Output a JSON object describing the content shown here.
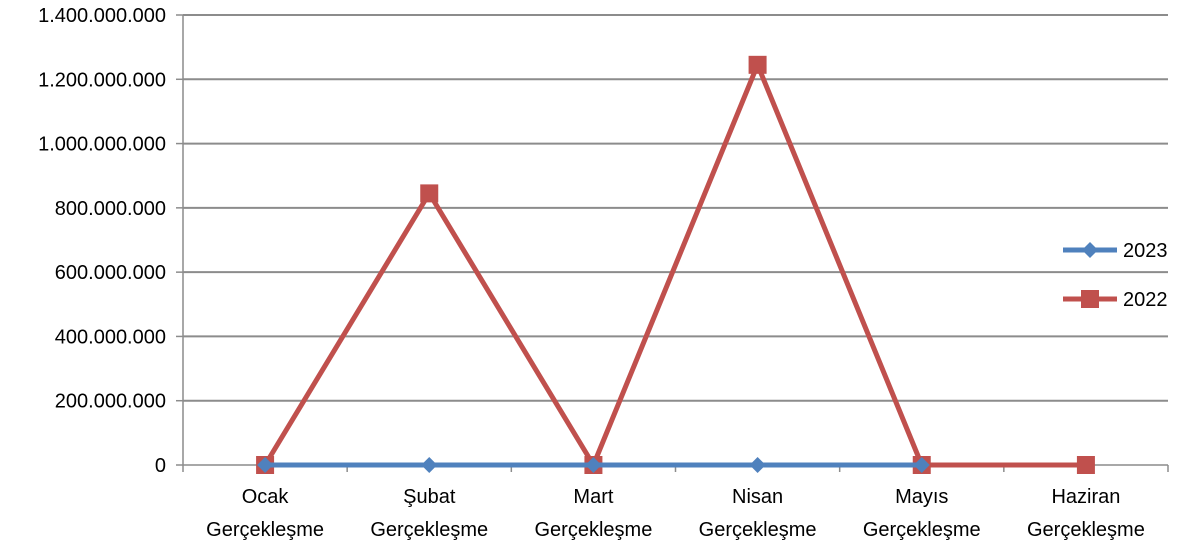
{
  "chart_data": {
    "type": "line",
    "categories": [
      [
        "Ocak",
        "Gerçekleşme"
      ],
      [
        "Şubat",
        "Gerçekleşme"
      ],
      [
        "Mart",
        "Gerçekleşme"
      ],
      [
        "Nisan",
        "Gerçekleşme"
      ],
      [
        "Mayıs",
        "Gerçekleşme"
      ],
      [
        "Haziran",
        "Gerçekleşme"
      ]
    ],
    "y_ticks": [
      {
        "value": 0,
        "label": "0"
      },
      {
        "value": 200000000,
        "label": "200.000.000"
      },
      {
        "value": 400000000,
        "label": "400.000.000"
      },
      {
        "value": 600000000,
        "label": "600.000.000"
      },
      {
        "value": 800000000,
        "label": "800.000.000"
      },
      {
        "value": 1000000000,
        "label": "1.000.000.000"
      },
      {
        "value": 1200000000,
        "label": "1.200.000.000"
      },
      {
        "value": 1400000000,
        "label": "1.400.000.000"
      }
    ],
    "ylim": [
      0,
      1400000000
    ],
    "grid": true,
    "legend_position": "right",
    "series": [
      {
        "name": "2023",
        "color": "#4F81BD",
        "marker": "diamond",
        "values": [
          0,
          0,
          0,
          0,
          0,
          null
        ]
      },
      {
        "name": "2022",
        "color": "#C0504D",
        "marker": "square",
        "values": [
          0,
          845000000,
          0,
          1245000000,
          0,
          0
        ]
      }
    ]
  }
}
